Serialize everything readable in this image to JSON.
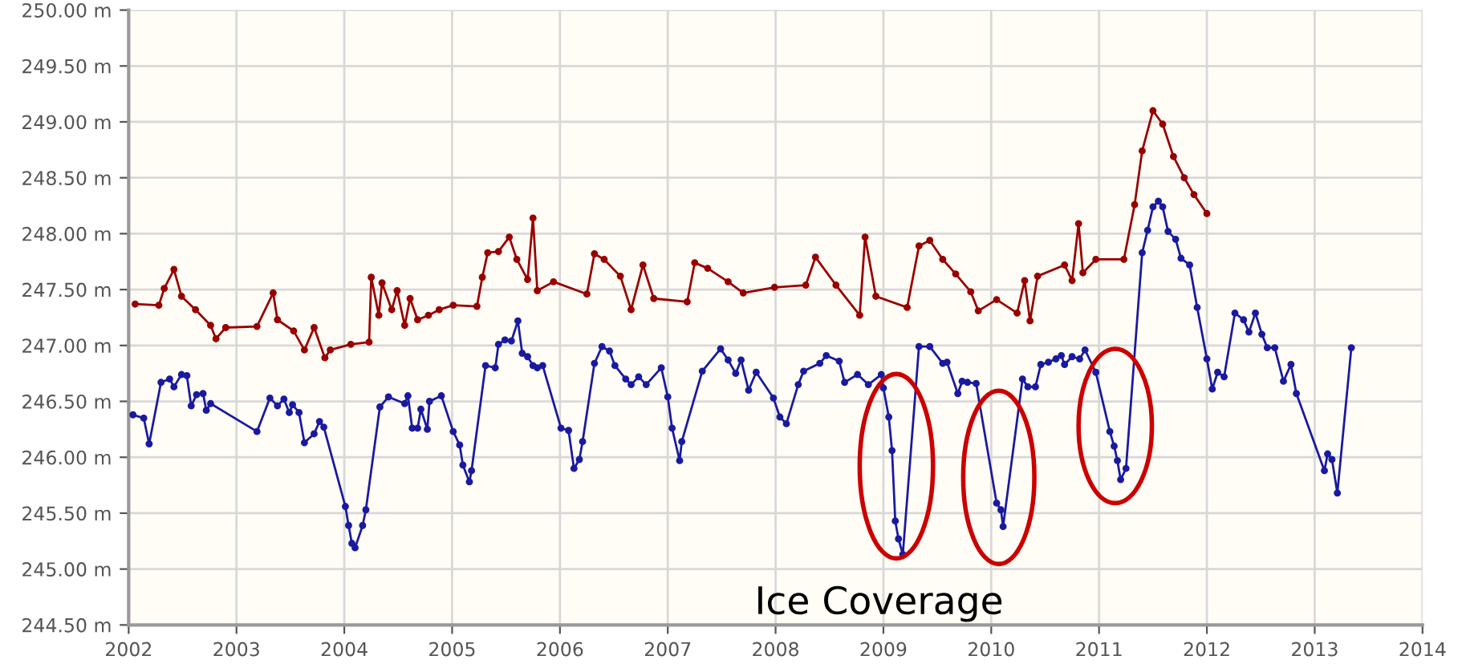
{
  "chart_data": {
    "type": "line",
    "annotations": [
      "Ice Coverage"
    ],
    "marker": "circle",
    "grid": true,
    "legend": false,
    "xlim": [
      2002,
      2014
    ],
    "xticks": [
      2002,
      2003,
      2004,
      2005,
      2006,
      2007,
      2008,
      2009,
      2010,
      2011,
      2012,
      2013,
      2014
    ],
    "ylim": [
      244.5,
      250
    ],
    "yticks": [
      {
        "value": 244.5,
        "label": "244.50 m"
      },
      {
        "value": 245,
        "label": "245.00 m"
      },
      {
        "value": 245.5,
        "label": "245.50 m"
      },
      {
        "value": 246,
        "label": "246.00 m"
      },
      {
        "value": 246.5,
        "label": "246.50 m"
      },
      {
        "value": 247,
        "label": "247.00 m"
      },
      {
        "value": 247.5,
        "label": "247.50 m"
      },
      {
        "value": 248,
        "label": "248.00 m"
      },
      {
        "value": 248.5,
        "label": "248.50 m"
      },
      {
        "value": 249,
        "label": "249.00 m"
      },
      {
        "value": 249.5,
        "label": "249.50 m"
      },
      {
        "value": 250,
        "label": "250.00 m"
      }
    ],
    "series": [
      {
        "color": "#990000",
        "x": [
          2002.06,
          2002.28,
          2002.33,
          2002.42,
          2002.49,
          2002.62,
          2002.76,
          2002.81,
          2002.9,
          2003.19,
          2003.34,
          2003.38,
          2003.53,
          2003.63,
          2003.72,
          2003.82,
          2003.87,
          2004.06,
          2004.23,
          2004.25,
          2004.32,
          2004.35,
          2004.44,
          2004.49,
          2004.56,
          2004.61,
          2004.68,
          2004.78,
          2004.88,
          2005.01,
          2005.23,
          2005.28,
          2005.33,
          2005.43,
          2005.53,
          2005.6,
          2005.7,
          2005.75,
          2005.79,
          2005.94,
          2006.25,
          2006.32,
          2006.41,
          2006.56,
          2006.66,
          2006.77,
          2006.87,
          2007.18,
          2007.25,
          2007.37,
          2007.56,
          2007.7,
          2007.99,
          2008.28,
          2008.37,
          2008.56,
          2008.78,
          2008.83,
          2008.93,
          2009.22,
          2009.33,
          2009.43,
          2009.55,
          2009.67,
          2009.81,
          2009.88,
          2010.05,
          2010.24,
          2010.31,
          2010.36,
          2010.43,
          2010.68,
          2010.75,
          2010.81,
          2010.85,
          2010.97,
          2011.23,
          2011.33,
          2011.4,
          2011.5,
          2011.59,
          2011.69,
          2011.79,
          2011.88,
          2012.0
        ],
        "values": [
          247.37,
          247.36,
          247.51,
          247.68,
          247.44,
          247.32,
          247.18,
          247.06,
          247.16,
          247.17,
          247.47,
          247.23,
          247.13,
          246.96,
          247.16,
          246.89,
          246.96,
          247.01,
          247.03,
          247.61,
          247.27,
          247.56,
          247.32,
          247.49,
          247.18,
          247.42,
          247.23,
          247.27,
          247.32,
          247.36,
          247.35,
          247.61,
          247.83,
          247.84,
          247.97,
          247.77,
          247.59,
          248.14,
          247.49,
          247.57,
          247.46,
          247.82,
          247.77,
          247.62,
          247.32,
          247.72,
          247.42,
          247.39,
          247.74,
          247.69,
          247.57,
          247.47,
          247.52,
          247.54,
          247.79,
          247.54,
          247.27,
          247.97,
          247.44,
          247.34,
          247.89,
          247.94,
          247.77,
          247.64,
          247.48,
          247.31,
          247.41,
          247.29,
          247.58,
          247.22,
          247.62,
          247.72,
          247.58,
          248.09,
          247.65,
          247.77,
          247.77,
          248.26,
          248.74,
          249.1,
          248.98,
          248.69,
          248.5,
          248.35,
          248.18
        ]
      },
      {
        "color": "#1a1aa0",
        "x": [
          2002.04,
          2002.14,
          2002.19,
          2002.3,
          2002.38,
          2002.42,
          2002.49,
          2002.54,
          2002.58,
          2002.63,
          2002.69,
          2002.72,
          2002.76,
          2003.19,
          2003.31,
          2003.38,
          2003.44,
          2003.49,
          2003.52,
          2003.58,
          2003.63,
          2003.72,
          2003.77,
          2003.81,
          2004.01,
          2004.04,
          2004.07,
          2004.1,
          2004.17,
          2004.2,
          2004.33,
          2004.41,
          2004.56,
          2004.59,
          2004.63,
          2004.68,
          2004.71,
          2004.77,
          2004.79,
          2004.9,
          2005.01,
          2005.07,
          2005.1,
          2005.16,
          2005.18,
          2005.31,
          2005.4,
          2005.43,
          2005.49,
          2005.55,
          2005.61,
          2005.65,
          2005.7,
          2005.75,
          2005.79,
          2005.84,
          2006.01,
          2006.08,
          2006.13,
          2006.18,
          2006.21,
          2006.32,
          2006.39,
          2006.46,
          2006.51,
          2006.61,
          2006.66,
          2006.73,
          2006.8,
          2006.94,
          2007.0,
          2007.04,
          2007.11,
          2007.13,
          2007.32,
          2007.49,
          2007.56,
          2007.63,
          2007.68,
          2007.75,
          2007.82,
          2007.98,
          2008.04,
          2008.1,
          2008.21,
          2008.26,
          2008.41,
          2008.47,
          2008.59,
          2008.64,
          2008.76,
          2008.86,
          2008.98,
          2009.0,
          2009.05,
          2009.08,
          2009.11,
          2009.14,
          2009.18,
          2009.33,
          2009.43,
          2009.55,
          2009.59,
          2009.69,
          2009.73,
          2009.78,
          2009.86,
          2010.05,
          2010.09,
          2010.11,
          2010.29,
          2010.34,
          2010.41,
          2010.46,
          2010.53,
          2010.6,
          2010.65,
          2010.68,
          2010.75,
          2010.82,
          2010.87,
          2010.97,
          2011.1,
          2011.14,
          2011.17,
          2011.2,
          2011.25,
          2011.4,
          2011.45,
          2011.5,
          2011.55,
          2011.59,
          2011.64,
          2011.71,
          2011.76,
          2011.84,
          2011.91,
          2012.0,
          2012.05,
          2012.1,
          2012.16,
          2012.26,
          2012.34,
          2012.39,
          2012.45,
          2012.51,
          2012.56,
          2012.63,
          2012.71,
          2012.78,
          2012.83,
          2013.09,
          2013.12,
          2013.16,
          2013.21,
          2013.34
        ],
        "values": [
          246.38,
          246.35,
          246.12,
          246.67,
          246.7,
          246.63,
          246.74,
          246.73,
          246.46,
          246.56,
          246.57,
          246.42,
          246.48,
          246.23,
          246.53,
          246.46,
          246.52,
          246.4,
          246.47,
          246.4,
          246.13,
          246.21,
          246.32,
          246.27,
          245.56,
          245.39,
          245.23,
          245.19,
          245.39,
          245.53,
          246.45,
          246.54,
          246.48,
          246.55,
          246.26,
          246.26,
          246.43,
          246.25,
          246.5,
          246.55,
          246.23,
          246.11,
          245.93,
          245.78,
          245.88,
          246.82,
          246.8,
          247.01,
          247.05,
          247.04,
          247.22,
          246.93,
          246.9,
          246.82,
          246.8,
          246.82,
          246.26,
          246.24,
          245.9,
          245.98,
          246.14,
          246.84,
          246.99,
          246.95,
          246.82,
          246.7,
          246.65,
          246.72,
          246.65,
          246.8,
          246.54,
          246.26,
          245.97,
          246.14,
          246.77,
          246.97,
          246.87,
          246.75,
          246.87,
          246.6,
          246.76,
          246.53,
          246.36,
          246.3,
          246.65,
          246.77,
          246.84,
          246.91,
          246.86,
          246.67,
          246.74,
          246.65,
          246.74,
          246.62,
          246.36,
          246.06,
          245.43,
          245.27,
          245.13,
          246.99,
          246.99,
          246.84,
          246.85,
          246.57,
          246.68,
          246.67,
          246.66,
          245.59,
          245.53,
          245.38,
          246.7,
          246.63,
          246.63,
          246.83,
          246.85,
          246.88,
          246.91,
          246.83,
          246.9,
          246.88,
          246.96,
          246.76,
          246.23,
          246.1,
          245.97,
          245.8,
          245.9,
          247.83,
          248.03,
          248.24,
          248.29,
          248.24,
          248.02,
          247.95,
          247.78,
          247.72,
          247.34,
          246.88,
          246.61,
          246.76,
          246.72,
          247.29,
          247.23,
          247.12,
          247.29,
          247.1,
          246.98,
          246.98,
          246.68,
          246.83,
          246.57,
          245.88,
          246.03,
          245.98,
          245.68,
          246.98
        ]
      }
    ]
  }
}
